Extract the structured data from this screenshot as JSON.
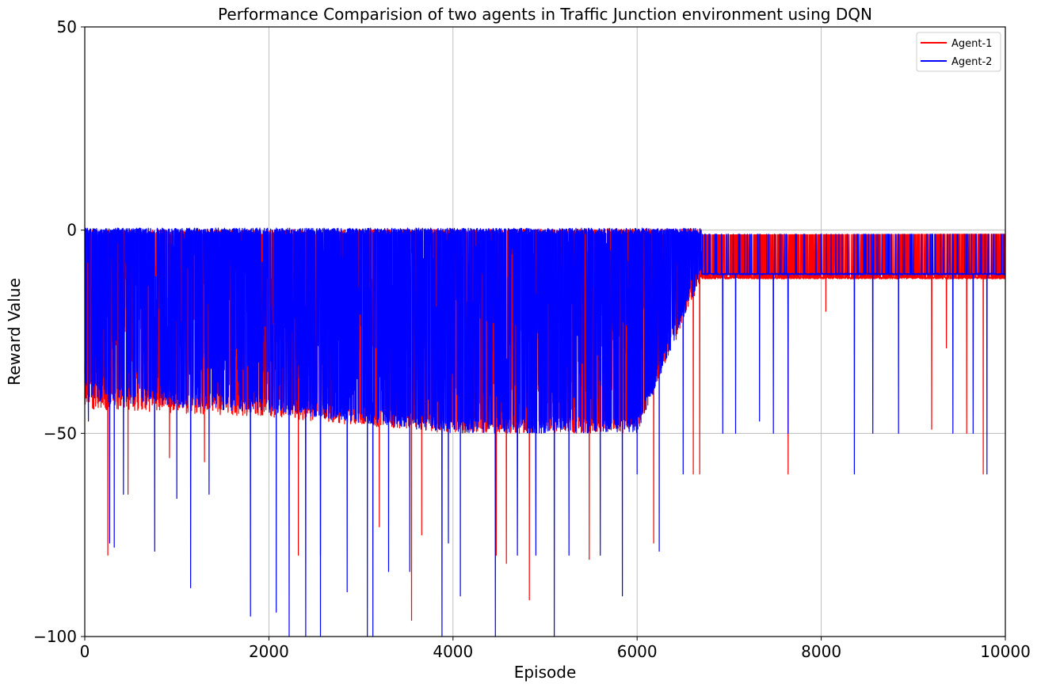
{
  "chart_data": {
    "type": "line",
    "title": "Performance Comparision of two agents in Traffic Junction environment using DQN",
    "xlabel": "Episode",
    "ylabel": "Reward Value",
    "xlim": [
      0,
      10000
    ],
    "ylim": [
      -100,
      50
    ],
    "x_ticks": [
      0,
      2000,
      4000,
      6000,
      8000,
      10000
    ],
    "y_ticks": [
      -100,
      -50,
      0,
      50
    ],
    "x_tick_labels": [
      "0",
      "2000",
      "4000",
      "6000",
      "8000",
      "10000"
    ],
    "y_tick_labels": [
      "−100",
      "−50",
      "0",
      "50"
    ],
    "grid": true,
    "legend_position": "top-right",
    "series": [
      {
        "name": "Agent-1",
        "color": "#ff0000",
        "band_top": [
          [
            0,
            -1.5
          ],
          [
            10000,
            -1
          ]
        ],
        "band_bottom": [
          [
            0,
            -44
          ],
          [
            2000,
            -46
          ],
          [
            4000,
            -50
          ],
          [
            6000,
            -50
          ],
          [
            6700,
            -12
          ],
          [
            10000,
            -12
          ]
        ],
        "upper_spikes_after": [
          [
            6700,
            -1
          ],
          [
            10000,
            -1
          ]
        ],
        "dips": [
          [
            250,
            -80
          ],
          [
            470,
            -65
          ],
          [
            920,
            -56
          ],
          [
            1300,
            -57
          ],
          [
            2320,
            -80
          ],
          [
            2560,
            -80
          ],
          [
            3200,
            -73
          ],
          [
            3550,
            -96
          ],
          [
            3660,
            -75
          ],
          [
            4470,
            -80
          ],
          [
            4580,
            -82
          ],
          [
            4830,
            -91
          ],
          [
            5480,
            -81
          ],
          [
            6180,
            -77
          ],
          [
            6610,
            -60
          ],
          [
            6680,
            -60
          ],
          [
            7640,
            -60
          ],
          [
            8050,
            -20
          ],
          [
            9200,
            -49
          ],
          [
            9360,
            -29
          ],
          [
            9580,
            -50
          ],
          [
            9760,
            -60
          ]
        ]
      },
      {
        "name": "Agent-2",
        "color": "#0000ff",
        "band_top": [
          [
            0,
            -1
          ],
          [
            10000,
            -1
          ]
        ],
        "band_bottom": [
          [
            0,
            -42
          ],
          [
            2000,
            -45
          ],
          [
            4000,
            -50
          ],
          [
            6000,
            -50
          ],
          [
            6700,
            -11
          ],
          [
            10000,
            -11
          ]
        ],
        "upper_spikes_after": [
          [
            6700,
            -1
          ],
          [
            10000,
            -1
          ]
        ],
        "dips": [
          [
            40,
            -47
          ],
          [
            270,
            -77
          ],
          [
            320,
            -78
          ],
          [
            420,
            -65
          ],
          [
            760,
            -79
          ],
          [
            1000,
            -66
          ],
          [
            1150,
            -88
          ],
          [
            1350,
            -65
          ],
          [
            1800,
            -95
          ],
          [
            2080,
            -94
          ],
          [
            2220,
            -100
          ],
          [
            2400,
            -100
          ],
          [
            2560,
            -100
          ],
          [
            2850,
            -89
          ],
          [
            3070,
            -100
          ],
          [
            3130,
            -100
          ],
          [
            3300,
            -84
          ],
          [
            3530,
            -84
          ],
          [
            3880,
            -100
          ],
          [
            3950,
            -77
          ],
          [
            4080,
            -90
          ],
          [
            4460,
            -100
          ],
          [
            4700,
            -80
          ],
          [
            4900,
            -80
          ],
          [
            5100,
            -100
          ],
          [
            5260,
            -80
          ],
          [
            5600,
            -80
          ],
          [
            5840,
            -90
          ],
          [
            6000,
            -60
          ],
          [
            6240,
            -79
          ],
          [
            6500,
            -60
          ],
          [
            6930,
            -50
          ],
          [
            7070,
            -50
          ],
          [
            7330,
            -47
          ],
          [
            7480,
            -50
          ],
          [
            7640,
            -50
          ],
          [
            8360,
            -60
          ],
          [
            8560,
            -50
          ],
          [
            8840,
            -50
          ],
          [
            9430,
            -50
          ],
          [
            9650,
            -50
          ],
          [
            9800,
            -60
          ]
        ]
      }
    ]
  }
}
